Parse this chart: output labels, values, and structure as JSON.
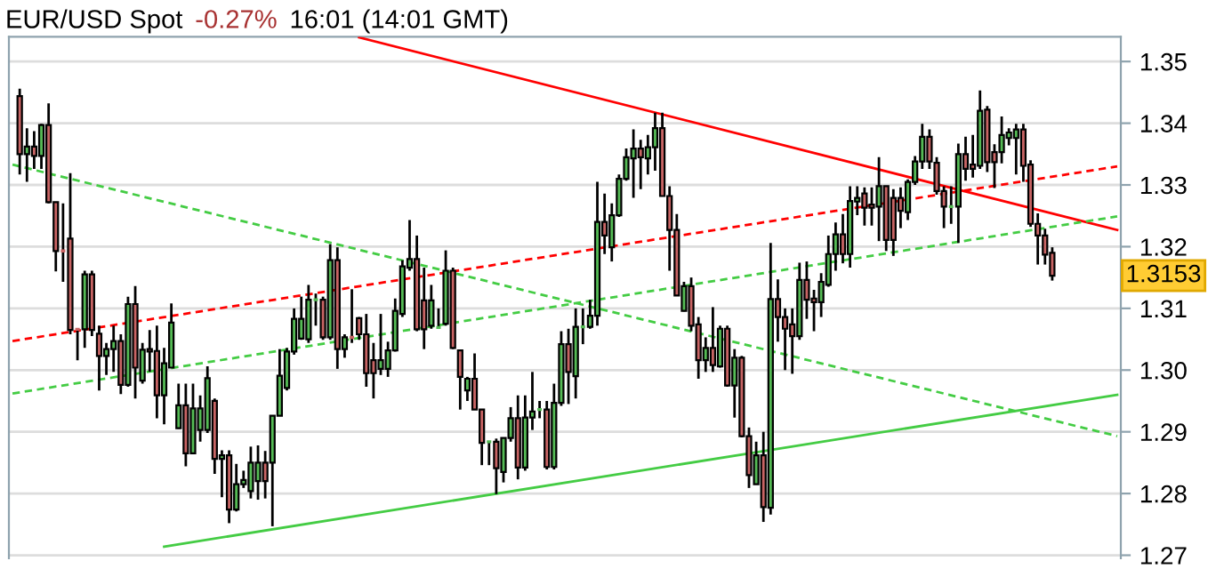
{
  "chart_data": {
    "type": "candlestick",
    "title": "EUR/USD Spot",
    "annotations": [
      "-0.27%",
      "16:01 (14:01 GMT)",
      "1.3153"
    ],
    "categories": [
      null,
      null,
      null,
      null,
      null,
      null,
      null,
      null,
      null,
      null,
      null,
      null,
      null,
      null,
      null,
      null,
      null,
      null,
      null,
      null,
      null,
      null,
      null,
      null,
      null,
      null,
      null,
      null,
      null,
      null,
      null,
      null,
      null,
      null,
      null,
      null,
      null,
      null,
      null,
      null,
      null,
      null,
      null,
      null,
      null,
      null,
      null,
      null,
      null,
      null,
      null,
      null,
      null,
      null,
      null,
      null,
      null,
      null,
      null,
      null,
      null,
      null,
      null,
      null,
      null,
      null,
      null,
      null,
      null,
      null,
      null,
      null,
      null,
      null,
      null,
      null,
      null,
      null,
      null,
      null,
      null,
      null,
      null,
      null,
      null,
      null,
      null,
      null,
      null,
      null,
      null,
      null,
      null,
      null,
      null,
      null,
      null,
      null,
      null,
      null,
      null,
      null,
      null,
      null,
      null,
      null,
      null,
      null,
      null,
      null,
      null,
      null,
      null,
      null,
      null,
      null,
      null,
      null,
      null,
      null,
      null,
      null,
      null,
      null,
      null,
      null,
      null,
      null,
      null,
      null,
      null,
      null,
      null,
      null,
      null,
      null,
      null,
      null,
      null,
      null,
      null,
      null,
      null,
      null,
      null,
      null,
      null,
      null,
      null,
      null,
      null,
      null,
      null,
      null
    ],
    "ohlc": [
      null,
      [
        1.3444,
        1.3456,
        1.3317,
        1.335
      ],
      [
        1.335,
        1.3392,
        1.3305,
        1.3362
      ],
      [
        1.3362,
        1.3387,
        1.3326,
        1.3347
      ],
      [
        1.3347,
        1.3399,
        1.3326,
        1.3397
      ],
      [
        1.3397,
        1.3432,
        1.327,
        1.3272
      ],
      [
        1.3272,
        1.3272,
        1.316,
        1.3193
      ],
      [
        1.3193,
        1.327,
        1.3143,
        1.3193
      ],
      [
        1.3213,
        1.3319,
        1.3058,
        1.3065
      ],
      [
        1.3066,
        1.3066,
        1.3016,
        1.3066
      ],
      [
        1.3066,
        1.3161,
        1.3036,
        1.3155
      ],
      [
        1.3155,
        1.3161,
        1.3055,
        1.3065
      ],
      [
        1.3059,
        1.3072,
        1.2967,
        1.3023
      ],
      [
        1.3023,
        1.3044,
        1.2992,
        1.3034
      ],
      [
        1.3034,
        1.3072,
        1.2997,
        1.3047
      ],
      [
        1.3047,
        1.3058,
        1.2961,
        1.2976
      ],
      [
        1.2976,
        1.3119,
        1.2973,
        1.3107
      ],
      [
        1.3107,
        1.3136,
        1.2954,
        1.3004
      ],
      [
        1.2983,
        1.3044,
        1.2978,
        1.3033
      ],
      [
        1.3034,
        1.3065,
        1.2997,
        1.303
      ],
      [
        1.3031,
        1.3072,
        1.2922,
        1.2959
      ],
      [
        1.2959,
        1.3036,
        1.2912,
        1.3011
      ],
      [
        1.3004,
        1.3108,
        1.3004,
        1.3077
      ],
      [
        1.2906,
        1.2978,
        1.2905,
        1.2943
      ],
      [
        1.2943,
        1.2978,
        1.2844,
        1.2865
      ],
      [
        1.2865,
        1.2978,
        1.2865,
        1.2938
      ],
      [
        1.2903,
        1.2959,
        1.2884,
        1.2938
      ],
      [
        1.2903,
        1.3006,
        1.2898,
        1.2987
      ],
      [
        1.295,
        1.2954,
        1.2832,
        1.2856
      ],
      [
        1.2856,
        1.287,
        1.2794,
        1.2862
      ],
      [
        1.2862,
        1.287,
        1.2752,
        1.2774
      ],
      [
        1.2774,
        1.2848,
        1.2771,
        1.2815
      ],
      [
        1.2815,
        1.2837,
        1.2809,
        1.2822
      ],
      [
        1.2804,
        1.2876,
        1.2792,
        1.285
      ],
      [
        1.282,
        1.2878,
        1.279,
        1.285
      ],
      [
        1.285,
        1.2869,
        1.2792,
        1.282
      ],
      [
        1.285,
        1.2926,
        1.2747,
        1.2926
      ],
      [
        1.2926,
        1.3034,
        1.2926,
        1.2991
      ],
      [
        1.2971,
        1.3036,
        1.2967,
        1.303
      ],
      [
        1.303,
        1.31,
        1.3025,
        1.3083
      ],
      [
        1.3051,
        1.3119,
        1.3049,
        1.3083
      ],
      [
        1.305,
        1.3138,
        1.3044,
        1.3114
      ],
      [
        1.3114,
        1.3124,
        1.3072,
        1.3114
      ],
      [
        1.3114,
        1.3119,
        1.3049,
        1.3053
      ],
      [
        1.3053,
        1.3204,
        1.3049,
        1.3178
      ],
      [
        1.3178,
        1.3199,
        1.3002,
        1.3034
      ],
      [
        1.3034,
        1.3058,
        1.302,
        1.3053
      ],
      [
        1.3053,
        1.3131,
        1.3044,
        1.3053
      ],
      [
        1.3084,
        1.3086,
        1.3049,
        1.3058
      ],
      [
        1.3058,
        1.3091,
        1.2973,
        1.2995
      ],
      [
        1.3016,
        1.3044,
        1.2954,
        1.2995
      ],
      [
        1.3002,
        1.3091,
        1.2992,
        1.3016
      ],
      [
        1.3002,
        1.3046,
        1.2989,
        1.3032
      ],
      [
        1.3032,
        1.3116,
        1.303,
        1.3096
      ],
      [
        1.3091,
        1.3178,
        1.3086,
        1.3168
      ],
      [
        1.3166,
        1.3243,
        1.3161,
        1.318
      ],
      [
        1.318,
        1.3218,
        1.3063,
        1.3066
      ],
      [
        1.3113,
        1.3166,
        1.3034,
        1.3066
      ],
      [
        1.3072,
        1.3138,
        1.3067,
        1.3113
      ],
      [
        1.3069,
        1.31,
        1.3067,
        1.3069
      ],
      [
        1.3075,
        1.3194,
        1.3072,
        1.3161
      ],
      [
        1.3161,
        1.3166,
        1.3034,
        1.3036
      ],
      [
        1.3032,
        1.3032,
        1.2936,
        1.2989
      ],
      [
        1.2967,
        1.2989,
        1.295,
        1.2986
      ],
      [
        1.2986,
        1.3027,
        1.2936,
        1.2936
      ],
      [
        1.2936,
        1.2936,
        1.2846,
        1.2882
      ],
      [
        1.2884,
        1.2884,
        1.2846,
        1.2884
      ],
      [
        1.2884,
        1.2889,
        1.2799,
        1.2841
      ],
      [
        1.2835,
        1.289,
        1.2818,
        1.289
      ],
      [
        1.289,
        1.294,
        1.2884,
        1.2922
      ],
      [
        1.2922,
        1.2959,
        1.2823,
        1.2842
      ],
      [
        1.2842,
        1.2959,
        1.2837,
        1.2923
      ],
      [
        1.2923,
        1.2997,
        1.2903,
        1.2933
      ],
      [
        1.2936,
        1.295,
        1.2922,
        1.2936
      ],
      [
        1.2936,
        1.295,
        1.2839,
        1.2843
      ],
      [
        1.2843,
        1.2978,
        1.2839,
        1.2947
      ],
      [
        1.2947,
        1.3063,
        1.2942,
        1.3042
      ],
      [
        1.3042,
        1.3067,
        1.2945,
        1.2997
      ],
      [
        1.299,
        1.31,
        1.2954,
        1.307
      ],
      [
        1.307,
        1.31,
        1.3042,
        1.307
      ],
      [
        1.307,
        1.3114,
        1.3067,
        1.3088
      ],
      [
        1.3088,
        1.3305,
        1.3072,
        1.324
      ],
      [
        1.324,
        1.3286,
        1.3188,
        1.3218
      ],
      [
        1.3199,
        1.327,
        1.3176,
        1.3251
      ],
      [
        1.3251,
        1.3317,
        1.3248,
        1.331
      ],
      [
        1.331,
        1.3359,
        1.3307,
        1.3345
      ],
      [
        1.3343,
        1.339,
        1.3279,
        1.3359
      ],
      [
        1.3359,
        1.3373,
        1.3293,
        1.3345
      ],
      [
        1.3343,
        1.3381,
        1.3317,
        1.3361
      ],
      [
        1.3361,
        1.3417,
        1.3323,
        1.3392
      ],
      [
        1.3392,
        1.3417,
        1.3282,
        1.3282
      ],
      [
        1.3282,
        1.3298,
        1.3161,
        1.3227
      ],
      [
        1.3227,
        1.3253,
        1.3121,
        1.3121
      ],
      [
        1.3096,
        1.3143,
        1.3095,
        1.3136
      ],
      [
        1.3136,
        1.315,
        1.3063,
        1.3072
      ],
      [
        1.3074,
        1.3086,
        1.2986,
        1.3016
      ],
      [
        1.3016,
        1.3053,
        1.2997,
        1.3036
      ],
      [
        1.3036,
        1.3102,
        1.2997,
        1.3008
      ],
      [
        1.3006,
        1.3072,
        1.3004,
        1.3067
      ],
      [
        1.3067,
        1.3072,
        1.2973,
        1.2975
      ],
      [
        1.2975,
        1.3034,
        1.2923,
        1.302
      ],
      [
        1.302,
        1.3023,
        1.2891,
        1.2893
      ],
      [
        1.2893,
        1.2907,
        1.2809,
        1.283
      ],
      [
        1.2815,
        1.2884,
        1.2815,
        1.2862
      ],
      [
        1.2862,
        1.29,
        1.2754,
        1.2778
      ],
      [
        1.2777,
        1.3206,
        1.2766,
        1.3115
      ],
      [
        1.3115,
        1.3147,
        1.3046,
        1.3086
      ],
      [
        1.3086,
        1.31,
        1.3,
        1.3067
      ],
      [
        1.3074,
        1.31,
        1.2994,
        1.3055
      ],
      [
        1.3055,
        1.3174,
        1.3049,
        1.3146
      ],
      [
        1.3146,
        1.3176,
        1.3083,
        1.3114
      ],
      [
        1.3116,
        1.313,
        1.3063,
        1.311
      ],
      [
        1.311,
        1.3157,
        1.3086,
        1.3143
      ],
      [
        1.3138,
        1.3218,
        1.3135,
        1.3188
      ],
      [
        1.3188,
        1.3239,
        1.3161,
        1.322
      ],
      [
        1.322,
        1.3253,
        1.3173,
        1.3188
      ],
      [
        1.3188,
        1.3298,
        1.3166,
        1.3274
      ],
      [
        1.3273,
        1.3298,
        1.3251,
        1.3279
      ],
      [
        1.3286,
        1.3296,
        1.3234,
        1.3263
      ],
      [
        1.3268,
        1.3296,
        1.3234,
        1.3263
      ],
      [
        1.3265,
        1.3345,
        1.3209,
        1.3298
      ],
      [
        1.3298,
        1.3298,
        1.3193,
        1.3211
      ],
      [
        1.3279,
        1.3293,
        1.3185,
        1.3211
      ],
      [
        1.3279,
        1.3296,
        1.323,
        1.3258
      ],
      [
        1.3256,
        1.3309,
        1.3243,
        1.3305
      ],
      [
        1.3305,
        1.3347,
        1.33,
        1.3338
      ],
      [
        1.3338,
        1.3399,
        1.3326,
        1.3378
      ],
      [
        1.3378,
        1.339,
        1.3326,
        1.3338
      ],
      [
        1.3336,
        1.3345,
        1.3284,
        1.329
      ],
      [
        1.329,
        1.3298,
        1.323,
        1.3265
      ],
      [
        1.3265,
        1.3298,
        1.3237,
        1.3265
      ],
      [
        1.3265,
        1.3367,
        1.3206,
        1.335
      ],
      [
        1.335,
        1.3378,
        1.3307,
        1.3326
      ],
      [
        1.3333,
        1.3381,
        1.3312,
        1.3326
      ],
      [
        1.3331,
        1.3453,
        1.3326,
        1.342
      ],
      [
        1.3422,
        1.3428,
        1.3321,
        1.3337
      ],
      [
        1.3353,
        1.3366,
        1.3295,
        1.3337
      ],
      [
        1.3353,
        1.3411,
        1.3335,
        1.3381
      ],
      [
        1.3376,
        1.3392,
        1.3364,
        1.3385
      ],
      [
        1.3376,
        1.3399,
        1.3317,
        1.339
      ],
      [
        1.339,
        1.3399,
        1.3305,
        1.3331
      ],
      [
        1.3333,
        1.334,
        1.3232,
        1.3237
      ],
      [
        1.3237,
        1.3254,
        1.3171,
        1.3218
      ],
      [
        1.3218,
        1.3229,
        1.3171,
        1.3187
      ],
      [
        1.319,
        1.3199,
        1.3145,
        1.3153
      ],
      null,
      null,
      null,
      null,
      null,
      null,
      null,
      null,
      null
    ],
    "colors": [
      null,
      "#c86464",
      "#55bb55",
      "#c86464",
      "#55bb55",
      "#c86464",
      "#c86464",
      "#c86464",
      "#c86464",
      "#c86464",
      "#55bb55",
      "#c86464",
      "#c86464",
      "#55bb55",
      "#55bb55",
      "#c86464",
      "#55bb55",
      "#c86464",
      "#55bb55",
      "#c86464",
      "#c86464",
      "#55bb55",
      "#55bb55",
      "#55bb55",
      "#c86464",
      "#55bb55",
      "#55bb55",
      "#55bb55",
      "#c86464",
      "#55bb55",
      "#c86464",
      "#55bb55",
      "#55bb55",
      "#55bb55",
      "#55bb55",
      "#c86464",
      "#55bb55",
      "#55bb55",
      "#55bb55",
      "#55bb55",
      "#55bb55",
      "#55bb55",
      "#55bb55",
      "#c86464",
      "#55bb55",
      "#c86464",
      "#55bb55",
      "#c86464",
      "#c86464",
      "#c86464",
      "#c86464",
      "#55bb55",
      "#55bb55",
      "#55bb55",
      "#55bb55",
      "#55bb55",
      "#c86464",
      "#c86464",
      "#55bb55",
      "#55bb55",
      "#55bb55",
      "#c86464",
      "#c86464",
      "#55bb55",
      "#c86464",
      "#c86464",
      "#55bb55",
      "#c86464",
      "#55bb55",
      "#55bb55",
      "#c86464",
      "#55bb55",
      "#55bb55",
      "#55bb55",
      "#c86464",
      "#55bb55",
      "#55bb55",
      "#c86464",
      "#55bb55",
      "#55bb55",
      "#55bb55",
      "#55bb55",
      "#c86464",
      "#55bb55",
      "#55bb55",
      "#55bb55",
      "#55bb55",
      "#c86464",
      "#55bb55",
      "#55bb55",
      "#c86464",
      "#c86464",
      "#c86464",
      "#55bb55",
      "#c86464",
      "#c86464",
      "#55bb55",
      "#c86464",
      "#55bb55",
      "#c86464",
      "#55bb55",
      "#c86464",
      "#c86464",
      "#55bb55",
      "#c86464",
      "#55bb55",
      "#c86464",
      "#c86464",
      "#c86464",
      "#55bb55",
      "#c86464",
      "#c86464",
      "#55bb55",
      "#55bb55",
      "#55bb55",
      "#c86464",
      "#55bb55",
      "#55bb55",
      "#c86464",
      "#c86464",
      "#55bb55",
      "#c86464",
      "#c86464",
      "#c86464",
      "#55bb55",
      "#55bb55",
      "#55bb55",
      "#c86464",
      "#c86464",
      "#c86464",
      "#55bb55",
      "#55bb55",
      "#c86464",
      "#c86464",
      "#55bb55",
      "#c86464",
      "#c86464",
      "#55bb55",
      "#55bb55",
      "#55bb55",
      "#c86464",
      "#c86464",
      "#c86464",
      "#c86464",
      "#c86464",
      null,
      null,
      null,
      null,
      null,
      null,
      null,
      null,
      null
    ],
    "series": [
      {
        "type": "line",
        "color": "#ff0000",
        "line_style": "solid",
        "values": [
          null,
          null,
          null,
          null,
          null,
          null,
          null,
          null,
          null,
          null,
          null,
          null,
          null,
          null,
          null,
          null,
          null,
          null,
          null,
          null,
          null,
          null,
          null,
          null,
          null,
          null,
          null,
          null,
          null,
          null,
          null,
          null,
          null,
          null,
          null,
          null,
          null,
          null,
          null,
          null,
          null,
          null,
          null,
          null,
          null,
          null,
          null,
          null,
          1.3539,
          null,
          null,
          null,
          null,
          null,
          null,
          null,
          null,
          null,
          null,
          null,
          null,
          null,
          null,
          null,
          null,
          null,
          null,
          null,
          null,
          null,
          null,
          null,
          null,
          null,
          null,
          null,
          null,
          null,
          null,
          null,
          null,
          null,
          null,
          null,
          null,
          null,
          null,
          null,
          null,
          null,
          null,
          null,
          null,
          null,
          null,
          null,
          null,
          null,
          null,
          null,
          null,
          null,
          null,
          null,
          null,
          null,
          null,
          null,
          null,
          null,
          null,
          null,
          null,
          null,
          null,
          null,
          null,
          null,
          null,
          null,
          null,
          null,
          null,
          null,
          null,
          null,
          null,
          null,
          null,
          null,
          null,
          null,
          null,
          null,
          null,
          null,
          null,
          null,
          null,
          null,
          null,
          null,
          null,
          null,
          null,
          null,
          null,
          null,
          null,
          null,
          null,
          null,
          null,
          1.3227
        ]
      },
      {
        "type": "line",
        "color": "#ff0000",
        "line_style": "dashed",
        "values": [
          1.3047,
          null,
          null,
          null,
          null,
          null,
          null,
          null,
          null,
          null,
          null,
          null,
          null,
          null,
          null,
          null,
          null,
          null,
          null,
          null,
          null,
          null,
          null,
          null,
          null,
          null,
          null,
          null,
          null,
          null,
          null,
          null,
          null,
          null,
          null,
          null,
          null,
          null,
          null,
          null,
          null,
          null,
          null,
          null,
          null,
          null,
          null,
          null,
          null,
          null,
          null,
          null,
          null,
          null,
          null,
          null,
          null,
          null,
          null,
          null,
          null,
          null,
          null,
          null,
          null,
          null,
          null,
          null,
          null,
          null,
          null,
          null,
          null,
          null,
          null,
          null,
          null,
          null,
          null,
          null,
          null,
          null,
          null,
          null,
          null,
          null,
          null,
          null,
          null,
          null,
          null,
          null,
          null,
          null,
          null,
          null,
          null,
          null,
          null,
          null,
          null,
          null,
          null,
          null,
          null,
          null,
          null,
          null,
          null,
          null,
          null,
          null,
          null,
          null,
          null,
          null,
          null,
          null,
          null,
          null,
          null,
          null,
          null,
          null,
          null,
          null,
          null,
          null,
          null,
          null,
          null,
          null,
          null,
          null,
          null,
          null,
          null,
          null,
          null,
          null,
          null,
          null,
          null,
          null,
          null,
          null,
          null,
          null,
          null,
          null,
          null,
          null,
          null,
          1.333
        ]
      },
      {
        "type": "line",
        "color": "#44cc44",
        "line_style": "dashed",
        "values": [
          1.3333,
          null,
          null,
          null,
          null,
          null,
          null,
          null,
          null,
          null,
          null,
          null,
          null,
          null,
          null,
          null,
          null,
          null,
          null,
          null,
          null,
          null,
          null,
          null,
          null,
          null,
          null,
          null,
          null,
          null,
          null,
          null,
          null,
          null,
          null,
          null,
          null,
          null,
          null,
          null,
          null,
          null,
          null,
          null,
          null,
          null,
          null,
          null,
          null,
          null,
          null,
          null,
          null,
          null,
          null,
          null,
          null,
          null,
          null,
          null,
          null,
          null,
          null,
          null,
          null,
          null,
          null,
          null,
          null,
          null,
          null,
          null,
          null,
          null,
          null,
          null,
          null,
          null,
          null,
          null,
          null,
          null,
          null,
          null,
          null,
          null,
          null,
          null,
          null,
          null,
          null,
          null,
          null,
          null,
          null,
          null,
          null,
          null,
          null,
          null,
          null,
          null,
          null,
          null,
          null,
          null,
          null,
          null,
          null,
          null,
          null,
          null,
          null,
          null,
          null,
          null,
          null,
          null,
          null,
          null,
          null,
          null,
          null,
          null,
          null,
          null,
          null,
          null,
          null,
          null,
          null,
          null,
          null,
          null,
          null,
          null,
          null,
          null,
          null,
          null,
          null,
          null,
          null,
          null,
          null,
          null,
          null,
          null,
          null,
          null,
          null,
          null,
          null,
          1.2893
        ]
      },
      {
        "type": "line",
        "color": "#44cc44",
        "line_style": "dashed",
        "values": [
          1.2962,
          null,
          null,
          null,
          null,
          null,
          null,
          null,
          null,
          null,
          null,
          null,
          null,
          null,
          null,
          null,
          null,
          null,
          null,
          null,
          null,
          null,
          null,
          null,
          null,
          null,
          null,
          null,
          null,
          null,
          null,
          null,
          null,
          null,
          null,
          null,
          null,
          null,
          null,
          null,
          null,
          null,
          null,
          null,
          null,
          null,
          null,
          null,
          null,
          null,
          null,
          null,
          null,
          null,
          null,
          null,
          null,
          null,
          null,
          null,
          null,
          null,
          null,
          null,
          null,
          null,
          null,
          null,
          null,
          null,
          null,
          null,
          null,
          null,
          null,
          null,
          null,
          null,
          null,
          null,
          null,
          null,
          null,
          null,
          null,
          null,
          null,
          null,
          null,
          null,
          null,
          null,
          null,
          null,
          null,
          null,
          null,
          null,
          null,
          null,
          null,
          null,
          null,
          null,
          null,
          null,
          null,
          null,
          null,
          null,
          null,
          null,
          null,
          null,
          null,
          null,
          null,
          null,
          null,
          null,
          null,
          null,
          null,
          null,
          null,
          null,
          null,
          null,
          null,
          null,
          null,
          null,
          null,
          null,
          null,
          null,
          null,
          null,
          null,
          null,
          null,
          null,
          null,
          null,
          null,
          null,
          null,
          null,
          null,
          null,
          null,
          null,
          null,
          1.3249
        ]
      },
      {
        "type": "line",
        "color": "#44cc44",
        "line_style": "solid",
        "values": [
          null,
          null,
          null,
          null,
          null,
          null,
          null,
          null,
          null,
          null,
          null,
          null,
          null,
          null,
          null,
          null,
          null,
          null,
          null,
          null,
          null,
          1.2714,
          null,
          null,
          null,
          null,
          null,
          null,
          null,
          null,
          null,
          null,
          null,
          null,
          null,
          null,
          null,
          null,
          null,
          null,
          null,
          null,
          null,
          null,
          null,
          null,
          null,
          null,
          null,
          null,
          null,
          null,
          null,
          null,
          null,
          null,
          null,
          null,
          null,
          null,
          null,
          null,
          null,
          null,
          null,
          null,
          null,
          null,
          null,
          null,
          null,
          null,
          null,
          null,
          null,
          null,
          null,
          null,
          null,
          null,
          null,
          null,
          null,
          null,
          null,
          null,
          null,
          null,
          null,
          null,
          null,
          null,
          null,
          null,
          null,
          null,
          null,
          null,
          null,
          null,
          null,
          null,
          null,
          null,
          null,
          null,
          null,
          null,
          null,
          null,
          null,
          null,
          null,
          null,
          null,
          null,
          null,
          null,
          null,
          null,
          null,
          null,
          null,
          null,
          null,
          null,
          null,
          null,
          null,
          null,
          null,
          null,
          null,
          null,
          null,
          null,
          null,
          null,
          null,
          null,
          null,
          null,
          null,
          null,
          null,
          null,
          null,
          null,
          null,
          null,
          null,
          null,
          null,
          1.296
        ]
      }
    ],
    "ylim": [
      1.2695,
      1.354
    ],
    "yticks": [
      1.27,
      1.28,
      1.29,
      {
        "value": 1.3,
        "label": "1.30"
      },
      1.31,
      1.32,
      1.33,
      1.34,
      1.35
    ],
    "grid": "y",
    "tick_labels": "y"
  }
}
